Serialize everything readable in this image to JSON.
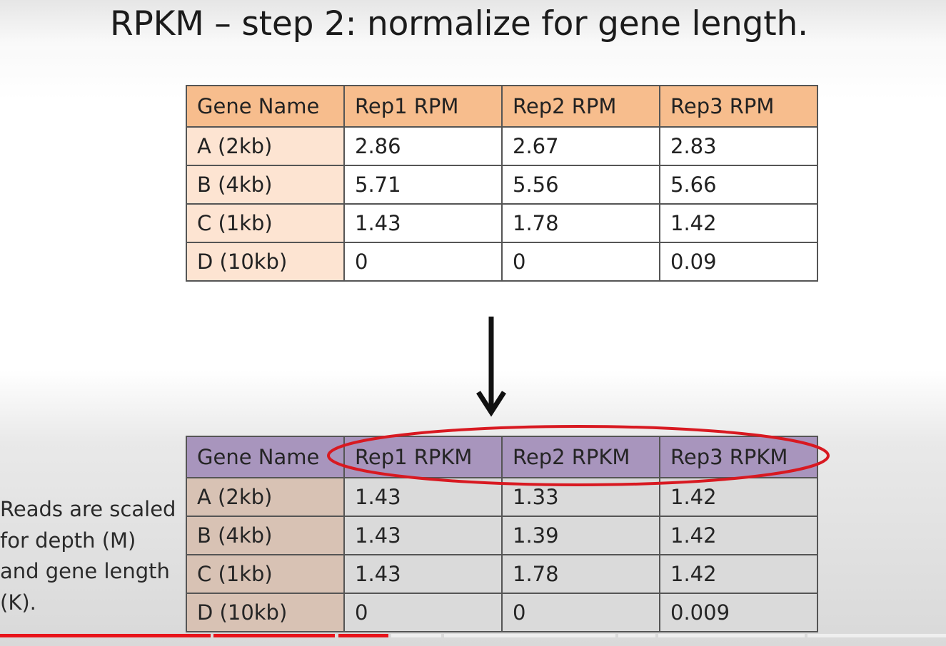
{
  "slide": {
    "title": "RPKM – step 2: normalize for gene length.",
    "side_note_lines": [
      "Reads are scaled",
      "for depth (M)",
      "and gene length",
      "(K)."
    ]
  },
  "top_table": {
    "headers": [
      "Gene Name",
      "Rep1 RPM",
      "Rep2 RPM",
      "Rep3 RPM"
    ],
    "rows": [
      [
        "A (2kb)",
        "2.86",
        "2.67",
        "2.83"
      ],
      [
        "B (4kb)",
        "5.71",
        "5.56",
        "5.66"
      ],
      [
        "C (1kb)",
        "1.43",
        "1.78",
        "1.42"
      ],
      [
        "D (10kb)",
        "0",
        "0",
        "0.09"
      ]
    ]
  },
  "bottom_table": {
    "headers": [
      "Gene Name",
      "Rep1 RPKM",
      "Rep2 RPKM",
      "Rep3 RPKM"
    ],
    "rows": [
      [
        "A (2kb)",
        "1.43",
        "1.33",
        "1.42"
      ],
      [
        "B (4kb)",
        "1.43",
        "1.39",
        "1.42"
      ],
      [
        "C (1kb)",
        "1.43",
        "1.78",
        "1.42"
      ],
      [
        "D (10kb)",
        "0",
        "0",
        "0.009"
      ]
    ]
  },
  "colors": {
    "top_header": "#f7bd8d",
    "top_name_col": "#fde4d2",
    "bottom_header": "#a895bd",
    "bottom_name_col": "#d8c2b4",
    "highlight_ellipse": "#d81921",
    "progress_played": "#e8141b"
  },
  "video": {
    "progress_played_fraction": 0.41
  },
  "icons": {
    "arrow": "down-arrow-icon"
  }
}
